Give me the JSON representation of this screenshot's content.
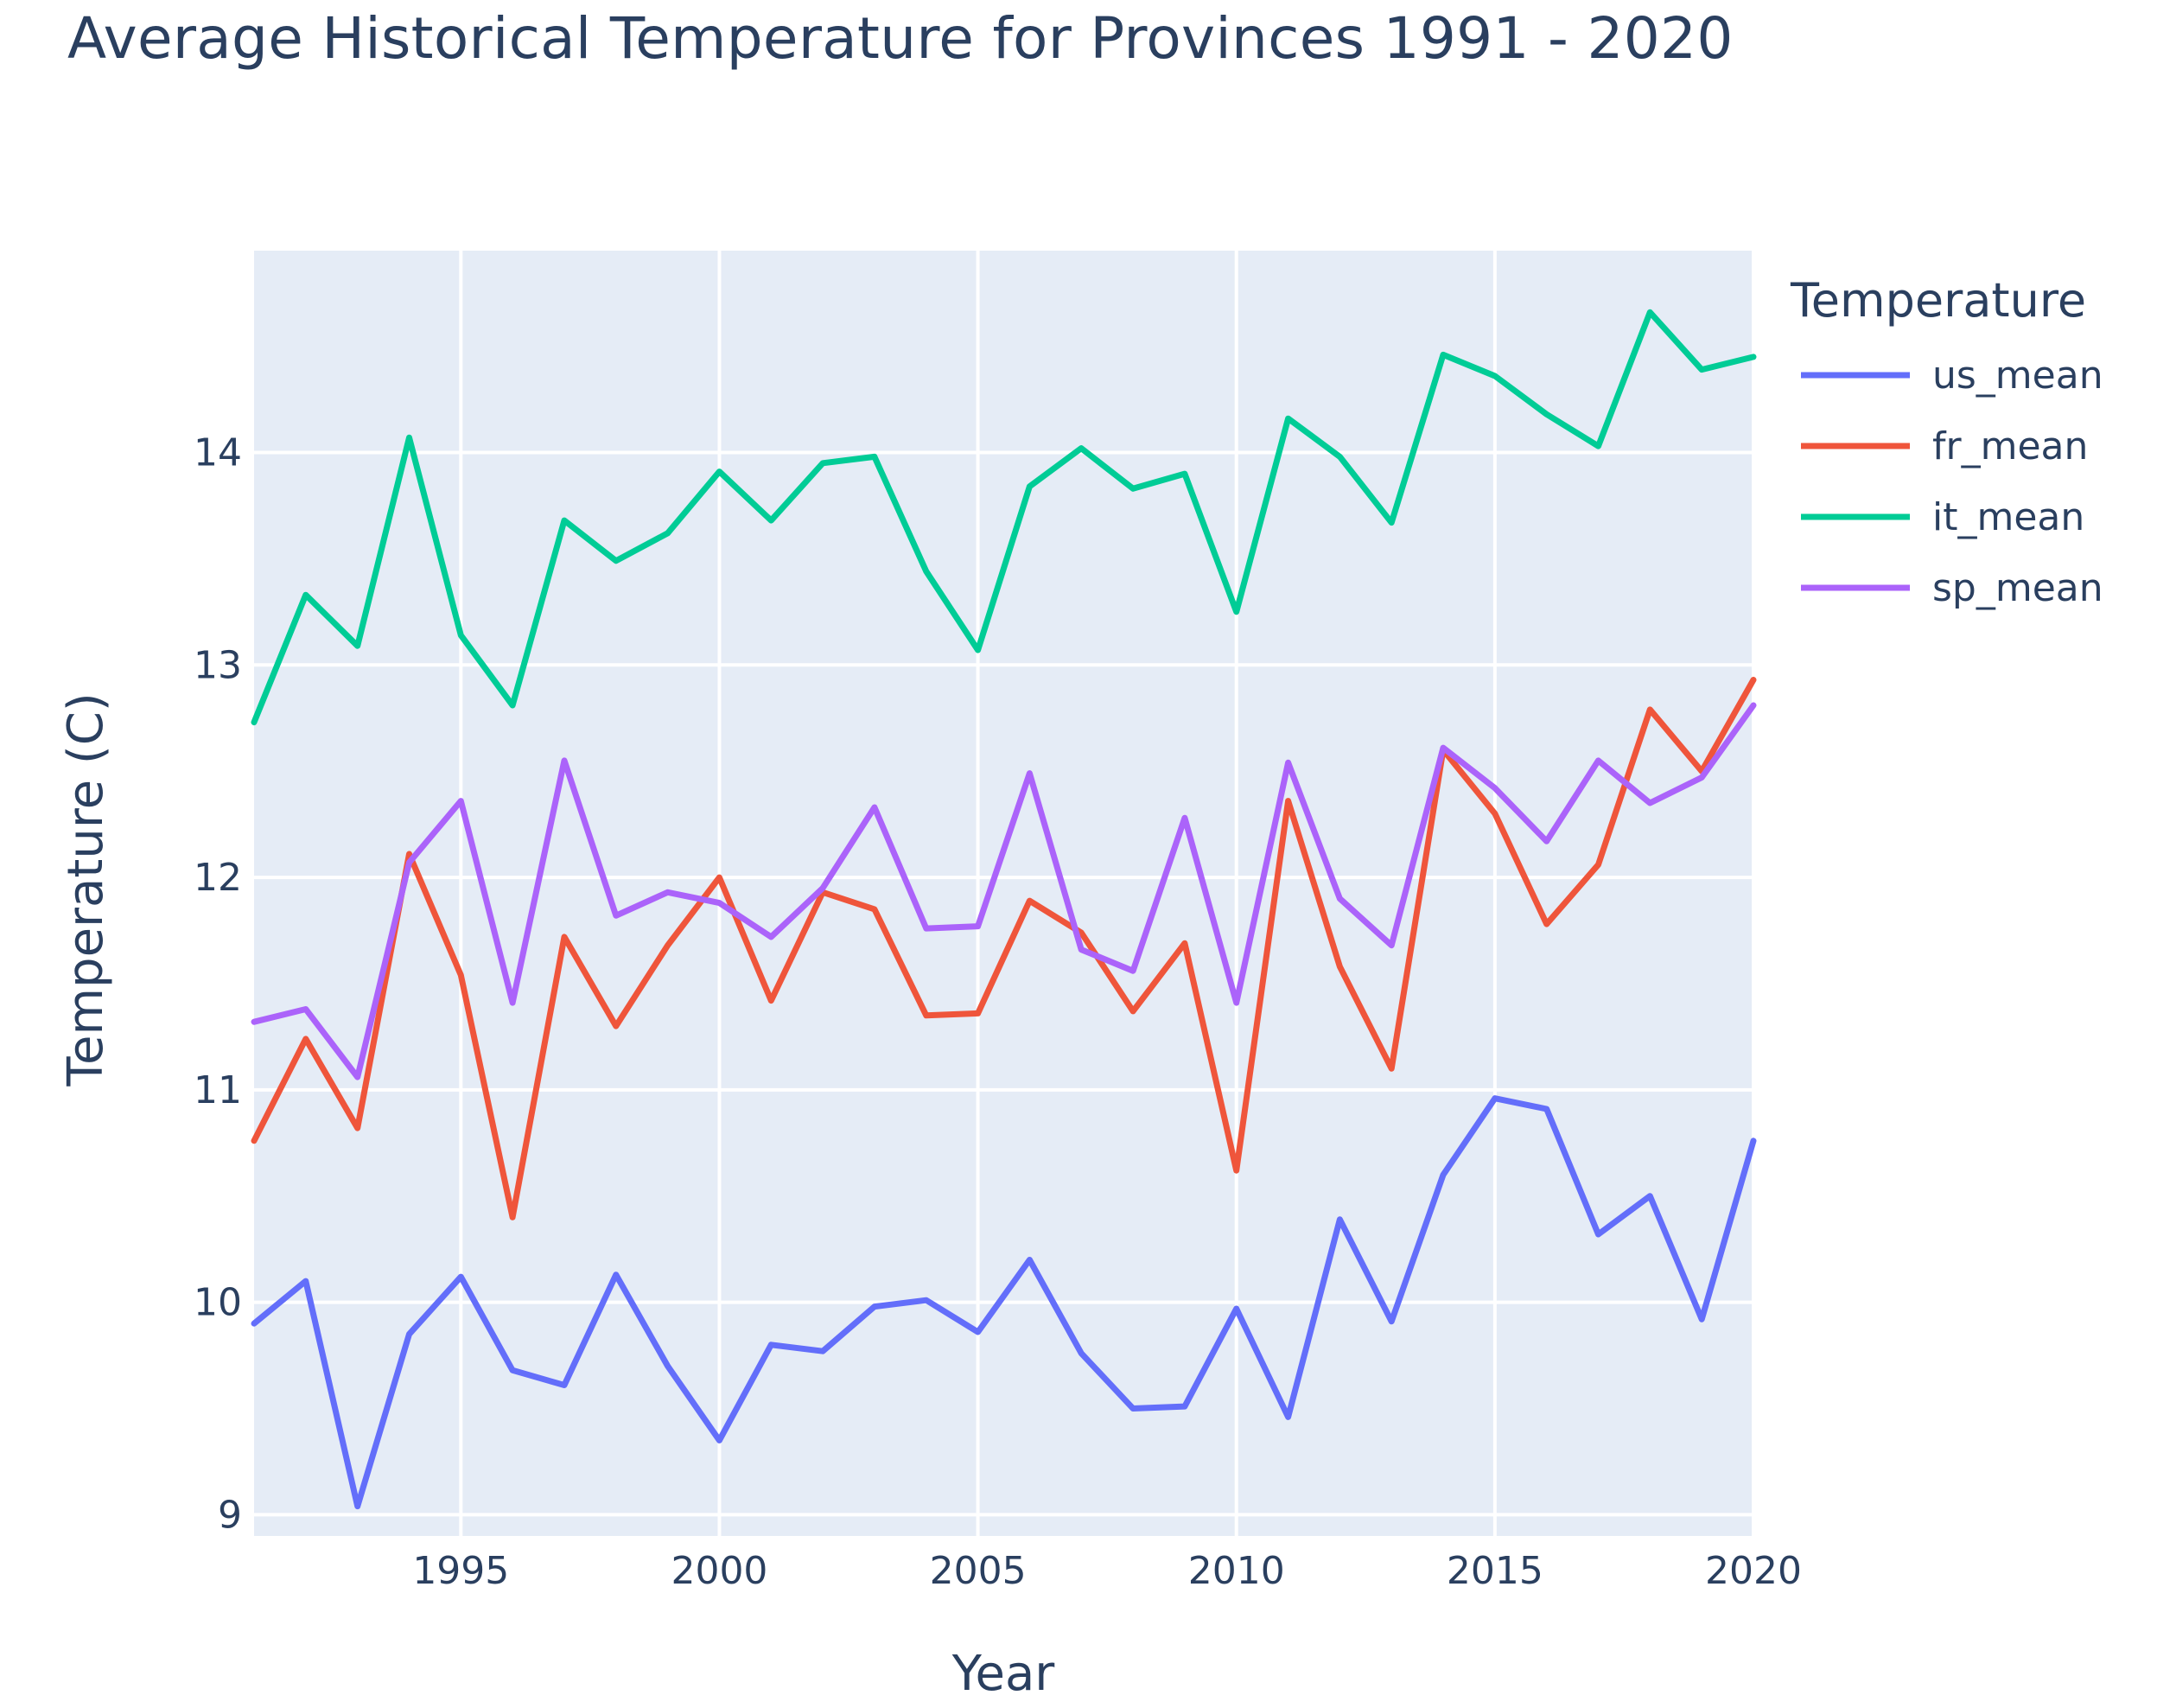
{
  "chart_data": {
    "type": "line",
    "title": "Average Historical Temperature for Provinces 1991 - 2020",
    "xlabel": "Year",
    "ylabel": "Temperature  (C)",
    "xlim": [
      1991,
      2020
    ],
    "ylim": [
      8.9,
      14.95
    ],
    "x_ticks": [
      1995,
      2000,
      2005,
      2010,
      2015,
      2020
    ],
    "y_ticks": [
      9,
      10,
      11,
      12,
      13,
      14
    ],
    "grid": true,
    "legend_title": "Temperature",
    "legend_position": "right",
    "x": [
      1991,
      1992,
      1993,
      1994,
      1995,
      1996,
      1997,
      1998,
      1999,
      2000,
      2001,
      2002,
      2003,
      2004,
      2005,
      2006,
      2007,
      2008,
      2009,
      2010,
      2011,
      2012,
      2013,
      2014,
      2015,
      2016,
      2017,
      2018,
      2019,
      2020
    ],
    "series": [
      {
        "name": "us_mean",
        "color": "#636efa",
        "values": [
          9.9,
          10.1,
          9.04,
          9.85,
          10.12,
          9.68,
          9.61,
          10.13,
          9.7,
          9.35,
          9.8,
          9.77,
          9.98,
          10.01,
          9.86,
          10.2,
          9.76,
          9.5,
          9.51,
          9.97,
          9.46,
          10.39,
          9.91,
          10.6,
          10.96,
          10.91,
          10.32,
          10.5,
          9.92,
          10.76
        ]
      },
      {
        "name": "fr_mean",
        "color": "#ef553b",
        "values": [
          10.76,
          11.24,
          10.82,
          12.11,
          11.54,
          10.4,
          11.72,
          11.3,
          11.68,
          12.0,
          11.42,
          11.93,
          11.85,
          11.35,
          11.36,
          11.89,
          11.74,
          11.37,
          11.69,
          10.62,
          12.36,
          11.58,
          11.1,
          12.6,
          12.3,
          11.78,
          12.06,
          12.79,
          12.5,
          12.93
        ]
      },
      {
        "name": "it_mean",
        "color": "#00cc96",
        "values": [
          12.73,
          13.33,
          13.09,
          14.07,
          13.14,
          12.81,
          13.68,
          13.49,
          13.62,
          13.91,
          13.68,
          13.95,
          13.98,
          13.44,
          13.07,
          13.84,
          14.02,
          13.83,
          13.9,
          13.25,
          14.16,
          13.98,
          13.67,
          14.46,
          14.36,
          14.18,
          14.03,
          14.66,
          14.39,
          14.45
        ]
      },
      {
        "name": "sp_mean",
        "color": "#ab63fa",
        "values": [
          11.32,
          11.38,
          11.06,
          12.07,
          12.36,
          11.41,
          12.55,
          11.82,
          11.93,
          11.88,
          11.72,
          11.95,
          12.33,
          11.76,
          11.77,
          12.49,
          11.66,
          11.56,
          12.28,
          11.41,
          12.54,
          11.9,
          11.68,
          12.61,
          12.42,
          12.17,
          12.55,
          12.35,
          12.47,
          12.81
        ]
      }
    ]
  }
}
